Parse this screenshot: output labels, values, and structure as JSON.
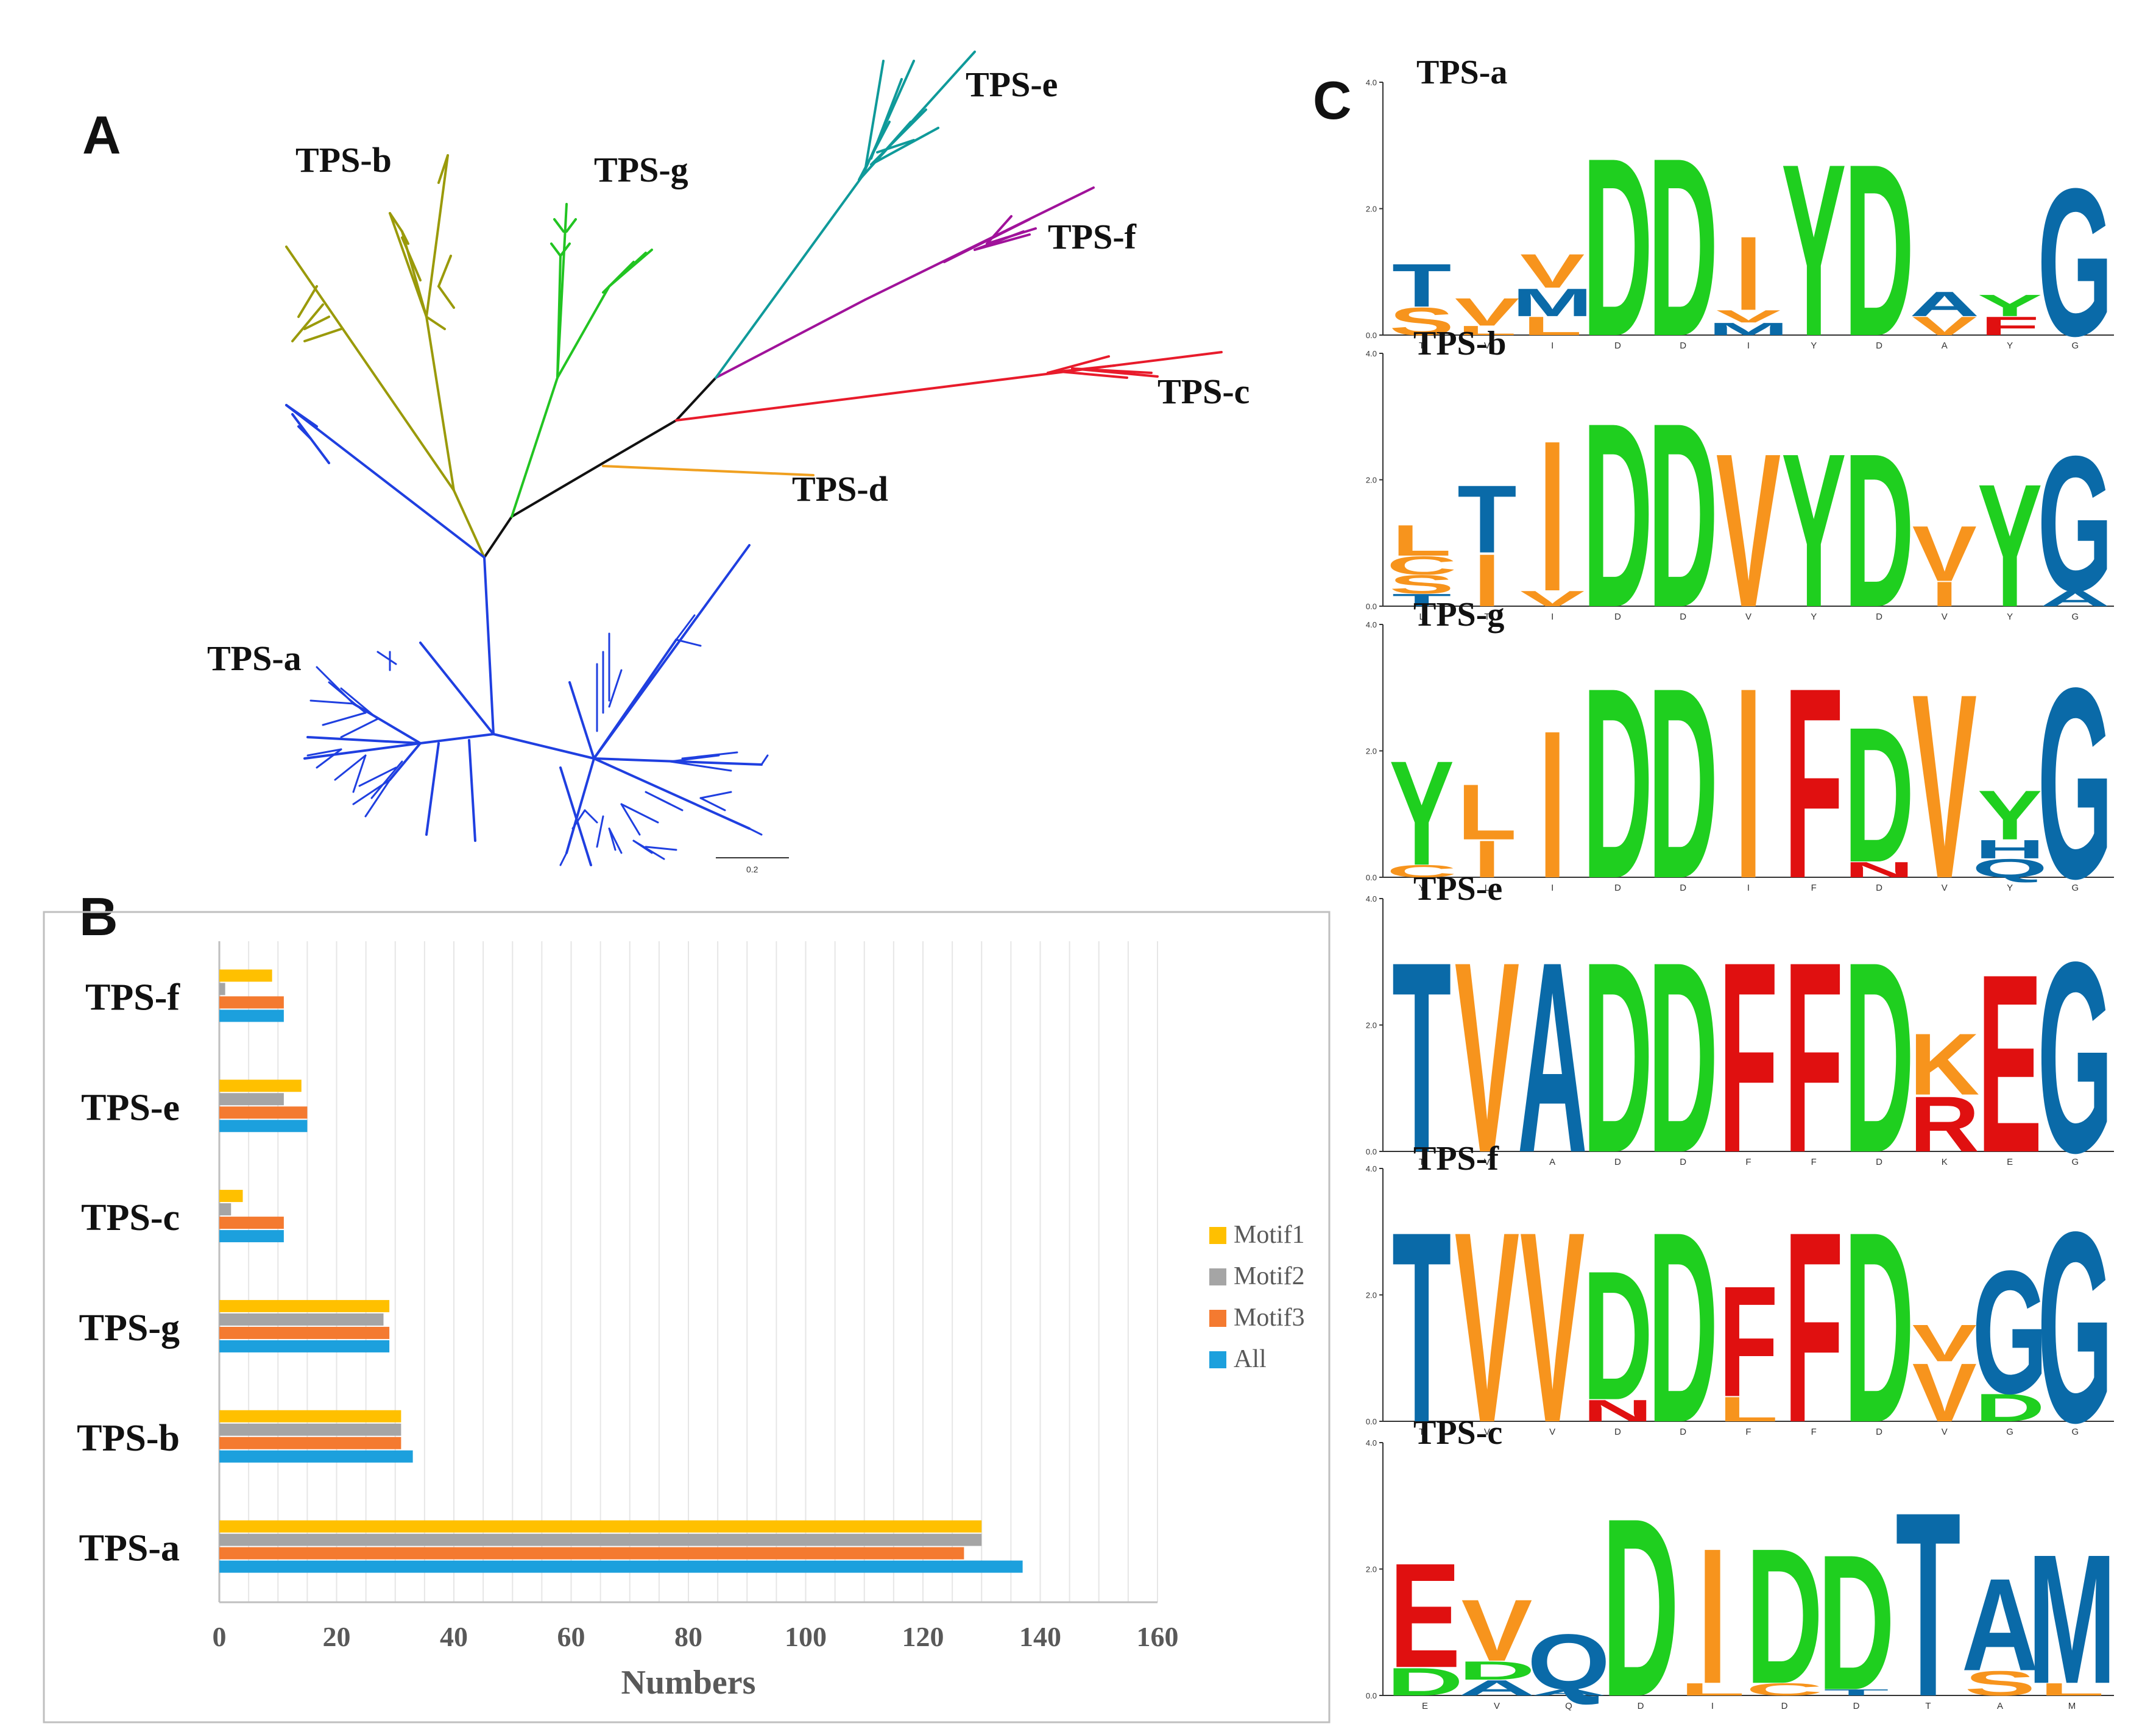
{
  "panels": {
    "a": "A",
    "b": "B",
    "c": "C"
  },
  "tree": {
    "scale_label": "0.2",
    "clades": [
      {
        "name": "TPS-a",
        "color": "#1f3fe0"
      },
      {
        "name": "TPS-b",
        "color": "#9a9a0a"
      },
      {
        "name": "TPS-g",
        "color": "#22c422"
      },
      {
        "name": "TPS-e",
        "color": "#0f9a9a"
      },
      {
        "name": "TPS-f",
        "color": "#a0129a"
      },
      {
        "name": "TPS-c",
        "color": "#e81b2b"
      },
      {
        "name": "TPS-d",
        "color": "#f0a020"
      }
    ]
  },
  "chart_data": {
    "type": "bar",
    "orientation": "horizontal",
    "categories": [
      "TPS-f",
      "TPS-e",
      "TPS-c",
      "TPS-g",
      "TPS-b",
      "TPS-a"
    ],
    "series": [
      {
        "name": "Motif1",
        "color": "#ffc000",
        "values": [
          9,
          14,
          4,
          29,
          31,
          130
        ]
      },
      {
        "name": "Motif2",
        "color": "#a5a5a5",
        "values": [
          1,
          11,
          2,
          28,
          31,
          130
        ]
      },
      {
        "name": "Motif3",
        "color": "#f47a30",
        "values": [
          11,
          15,
          11,
          29,
          31,
          127
        ]
      },
      {
        "name": "All",
        "color": "#1ca0dd",
        "values": [
          11,
          15,
          11,
          29,
          33,
          137
        ]
      }
    ],
    "xlim": [
      0,
      160
    ],
    "xticks": [
      "0",
      "20",
      "40",
      "60",
      "80",
      "100",
      "120",
      "140",
      "160"
    ],
    "xlabel": "Numbers",
    "ylabel": "",
    "grid": true,
    "legend": "right"
  },
  "logos": {
    "ymax_label": "4.0",
    "ymid_label": "2.0",
    "ymin_label": "0.0",
    "items": [
      {
        "title": "TPS-a",
        "positions": [
          "T",
          "V",
          "I",
          "D",
          "D",
          "I",
          "Y",
          "D",
          "A",
          "Y",
          "G"
        ]
      },
      {
        "title": "TPS-b",
        "positions": [
          "L",
          "T",
          "I",
          "D",
          "D",
          "V",
          "Y",
          "D",
          "V",
          "Y",
          "G"
        ]
      },
      {
        "title": "TPS-g",
        "positions": [
          "Y",
          "L",
          "I",
          "D",
          "D",
          "I",
          "F",
          "D",
          "V",
          "Y",
          "G"
        ]
      },
      {
        "title": "TPS-e",
        "positions": [
          "T",
          "V",
          "A",
          "D",
          "D",
          "F",
          "F",
          "D",
          "K",
          "E",
          "G"
        ]
      },
      {
        "title": "TPS-f",
        "positions": [
          "T",
          "V",
          "V",
          "D",
          "D",
          "F",
          "F",
          "D",
          "V",
          "G",
          "G"
        ]
      },
      {
        "title": "TPS-c",
        "positions": [
          "E",
          "V",
          "Q",
          "D",
          "I",
          "D",
          "D",
          "T",
          "A",
          "M"
        ]
      }
    ],
    "colors": {
      "A": "#0a6aa8",
      "T": "#0a6aa8",
      "D": "#1fcf1f",
      "Y": "#1fcf1f",
      "G": "#0a6aa8",
      "N": "#e01010",
      "F": "#e01010",
      "E": "#e01010",
      "R": "#e01010",
      "K": "#f7941d",
      "V": "#f7941d",
      "I": "#f7941d",
      "L": "#f7941d",
      "M": "#0a6aa8",
      "Q": "#0a6aa8",
      "C": "#f7941d",
      "S": "#f7941d",
      "H": "#0a6aa8"
    }
  }
}
